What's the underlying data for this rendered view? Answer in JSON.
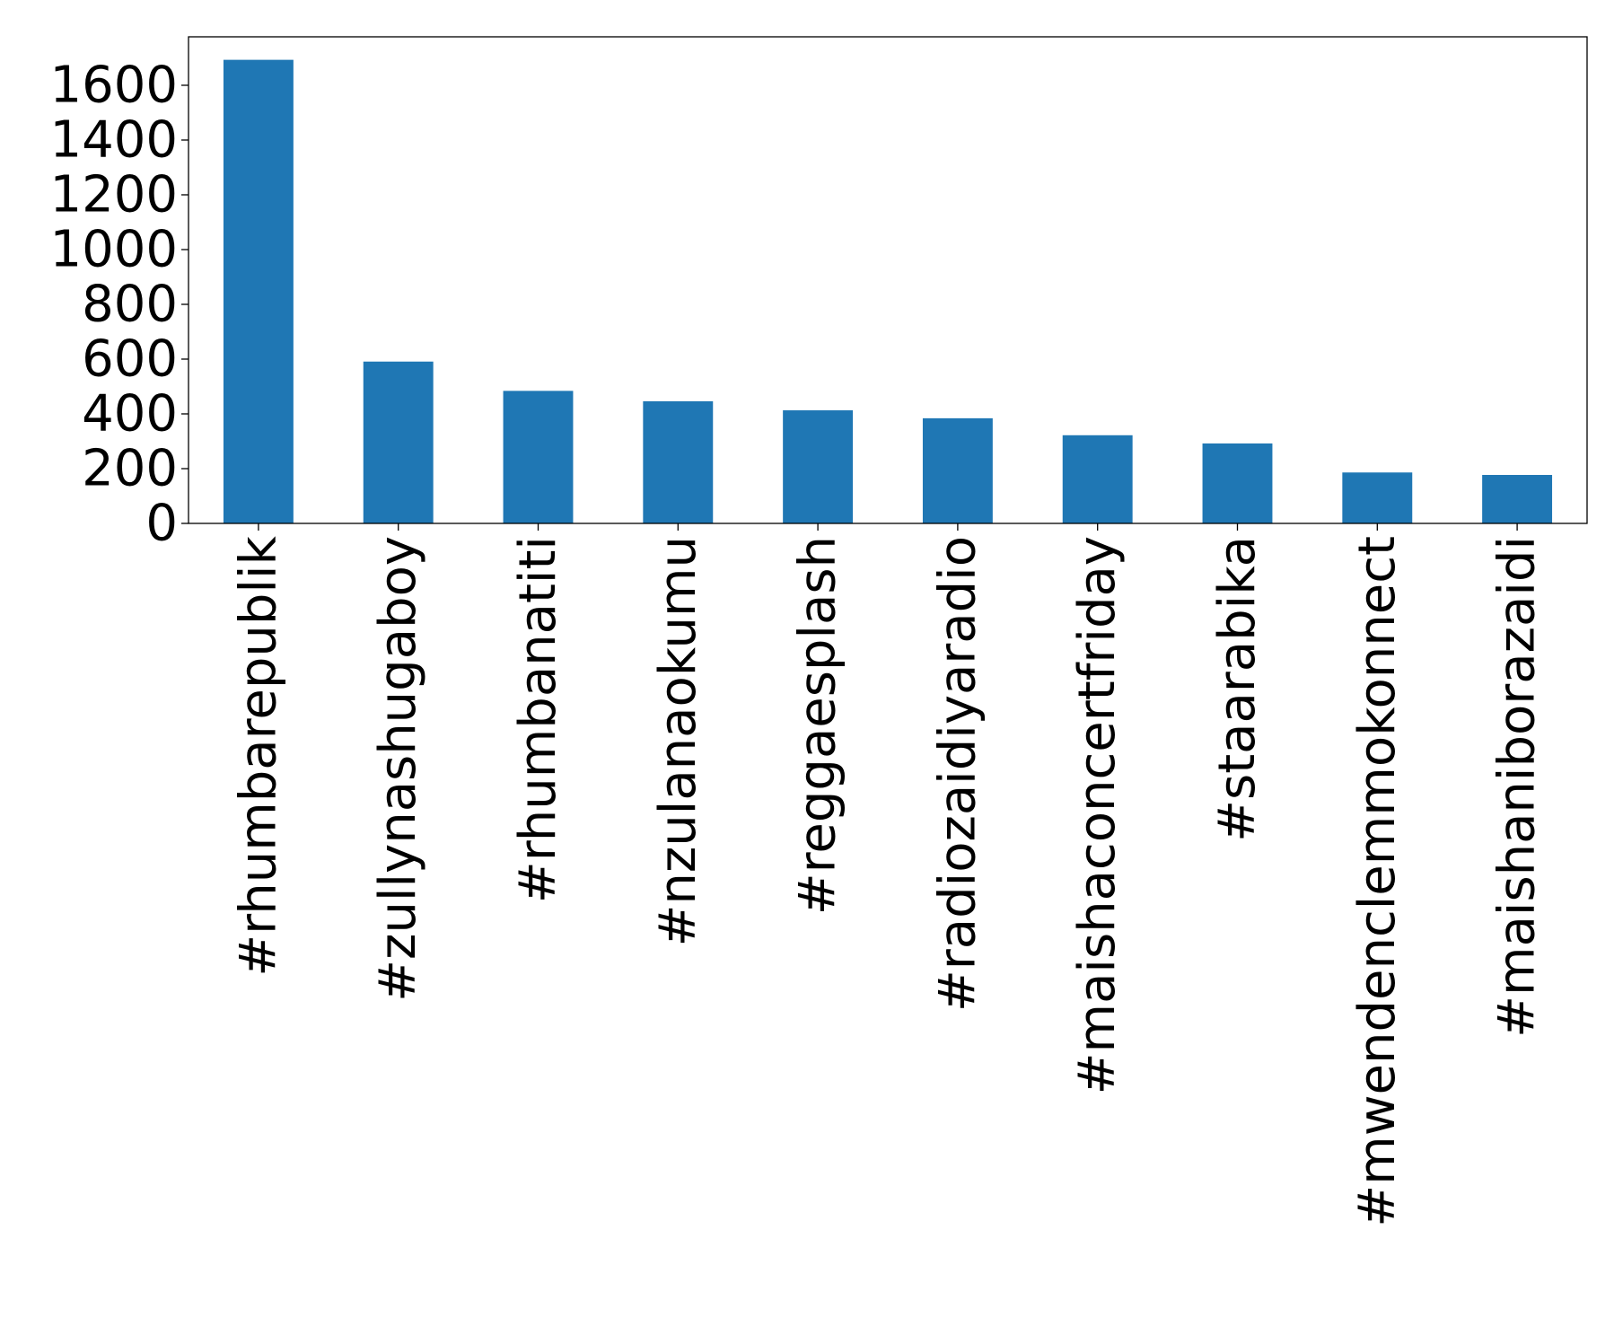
{
  "chart_data": {
    "type": "bar",
    "title": "",
    "xlabel": "",
    "ylabel": "",
    "categories": [
      "#rhumbarepublik",
      "#zullynashugaboy",
      "#rhumbanatiti",
      "#nzulanaokumu",
      "#reggaesplash",
      "#radiozaidiyaradio",
      "#maishaconcertfriday",
      "#staarabika",
      "#mwendenclemmokonnect",
      "#maishaniborazaidi"
    ],
    "values": [
      1693,
      591,
      484,
      446,
      413,
      384,
      322,
      292,
      186,
      177
    ],
    "yticks": [
      "0",
      "200",
      "400",
      "600",
      "800",
      "1000",
      "1200",
      "1400",
      "1600"
    ],
    "ylim": [
      0,
      1777
    ],
    "bar_color": "#1f77b4",
    "grid": false,
    "legend": "none"
  }
}
